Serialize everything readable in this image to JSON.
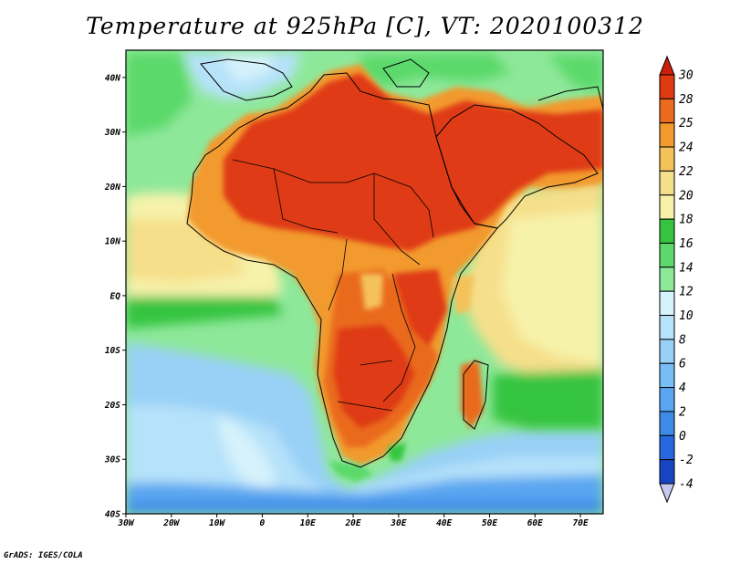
{
  "title": "Temperature at 925hPa [C], VT: 2020100312",
  "footer": "GrADS: IGES/COLA",
  "map": {
    "lon_range": [
      -30,
      75
    ],
    "lat_range": [
      -40,
      45
    ],
    "lon_ticks": [
      {
        "value": -30,
        "label": "30W"
      },
      {
        "value": -20,
        "label": "20W"
      },
      {
        "value": -10,
        "label": "10W"
      },
      {
        "value": 0,
        "label": "0"
      },
      {
        "value": 10,
        "label": "10E"
      },
      {
        "value": 20,
        "label": "20E"
      },
      {
        "value": 30,
        "label": "30E"
      },
      {
        "value": 40,
        "label": "40E"
      },
      {
        "value": 50,
        "label": "50E"
      },
      {
        "value": 60,
        "label": "60E"
      },
      {
        "value": 70,
        "label": "70E"
      }
    ],
    "lat_ticks": [
      {
        "value": 40,
        "label": "40N"
      },
      {
        "value": 30,
        "label": "30N"
      },
      {
        "value": 20,
        "label": "20N"
      },
      {
        "value": 10,
        "label": "10N"
      },
      {
        "value": 0,
        "label": "EQ"
      },
      {
        "value": -10,
        "label": "10S"
      },
      {
        "value": -20,
        "label": "20S"
      },
      {
        "value": -30,
        "label": "30S"
      },
      {
        "value": -40,
        "label": "40S"
      }
    ]
  },
  "colorbar": {
    "levels": [
      "-4",
      "-2",
      "0",
      "2",
      "4",
      "6",
      "8",
      "10",
      "12",
      "14",
      "16",
      "18",
      "20",
      "22",
      "24",
      "25",
      "28",
      "30"
    ],
    "colors": [
      "#0a1a6e",
      "#1746c2",
      "#2568e0",
      "#3f8ce8",
      "#5aa6f0",
      "#78bdf4",
      "#98d0f6",
      "#b6e2fa",
      "#d6f2fb",
      "#8ee89a",
      "#5cd96a",
      "#36c43f",
      "#f7f2aa",
      "#f6df8a",
      "#f5c25a",
      "#f29a2e",
      "#ea6a1e",
      "#df3a12",
      "#cc1e0a"
    ],
    "under_color": "#c8c8f0",
    "over_color": "#cc1e0a"
  },
  "colors": {
    "ocean_cool": "#8ee89a",
    "ocean_blue": "#98d0f6",
    "land_hot": "#df3a12",
    "land_warm": "#f29a2e"
  }
}
